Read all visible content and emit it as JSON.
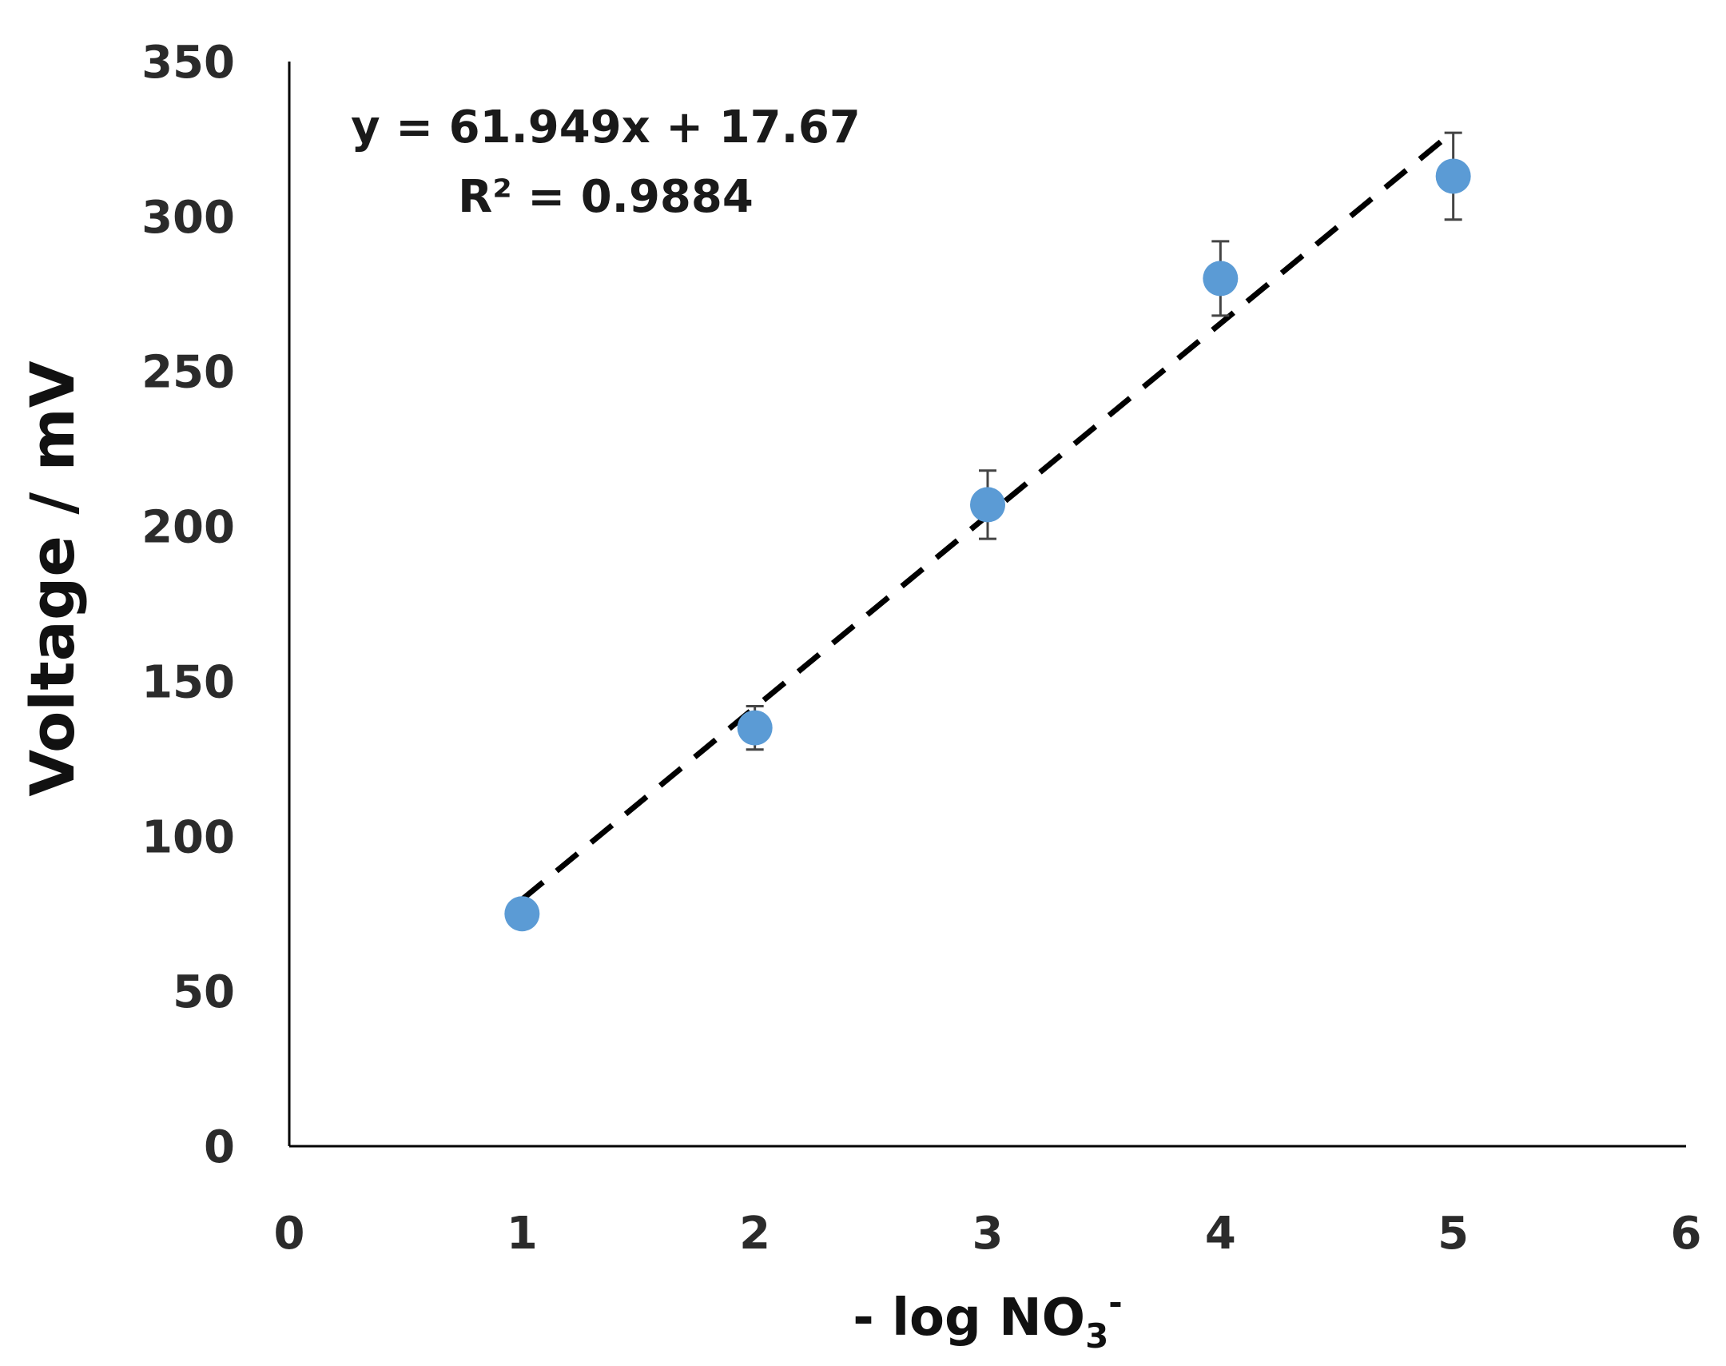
{
  "chart_data": {
    "type": "scatter",
    "xlabel": {
      "main": "- log NO",
      "sub": "3",
      "sup": "-"
    },
    "ylabel": "Voltage / mV",
    "xlim": [
      0,
      6
    ],
    "ylim": [
      0,
      350
    ],
    "x_ticks": [
      "0",
      "1",
      "2",
      "3",
      "4",
      "5",
      "6"
    ],
    "y_ticks": [
      "0",
      "50",
      "100",
      "150",
      "200",
      "250",
      "300",
      "350"
    ],
    "grid": false,
    "legend": "none",
    "series": [
      {
        "x": [
          1,
          2,
          3,
          4,
          5
        ],
        "y": [
          75,
          135,
          207,
          280,
          313
        ],
        "error": [
          3,
          7,
          11,
          12,
          14
        ],
        "color": "#5b9bd5"
      }
    ],
    "trendline": {
      "slope": 61.949,
      "intercept": 17.67,
      "x_range": [
        1,
        5
      ],
      "style": "dashed",
      "color": "#000000"
    },
    "annotations": {
      "equation": "y = 61.949x + 17.67",
      "r_squared": "R² = 0.9884"
    }
  }
}
